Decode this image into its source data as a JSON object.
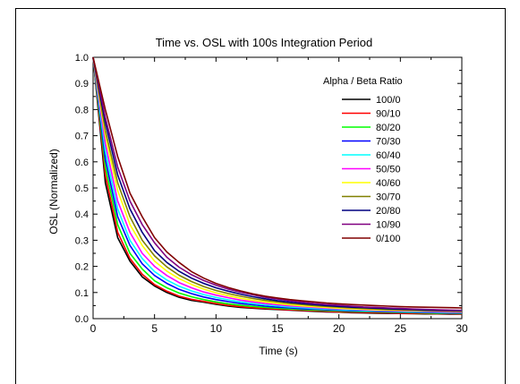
{
  "chart_data": {
    "type": "line",
    "title": "Time vs. OSL with 100s Integration Period",
    "xlabel": "Time (s)",
    "ylabel": "OSL (Normalized)",
    "xlim": [
      0,
      30
    ],
    "ylim": [
      0,
      1.0
    ],
    "xticks": [
      "0",
      "5",
      "10",
      "15",
      "20",
      "25",
      "30"
    ],
    "yticks": [
      "0.0",
      "0.1",
      "0.2",
      "0.3",
      "0.4",
      "0.5",
      "0.6",
      "0.7",
      "0.8",
      "0.9",
      "1.0"
    ],
    "grid": false,
    "legend_title": "Alpha / Beta Ratio",
    "legend_position": "top-right",
    "x": [
      0,
      1,
      2,
      3,
      4,
      5,
      6,
      7,
      8,
      9,
      10,
      11,
      12,
      13,
      14,
      15,
      16,
      17,
      18,
      19,
      20,
      21,
      22,
      23,
      24,
      25,
      26,
      27,
      28,
      29,
      30
    ],
    "series": [
      {
        "name": "100/0",
        "color": "#000000",
        "values": [
          1.0,
          0.52,
          0.31,
          0.22,
          0.16,
          0.125,
          0.1,
          0.082,
          0.07,
          0.063,
          0.055,
          0.048,
          0.043,
          0.04,
          0.037,
          0.035,
          0.033,
          0.03,
          0.028,
          0.026,
          0.025,
          0.023,
          0.022,
          0.021,
          0.02,
          0.02,
          0.019,
          0.018,
          0.018,
          0.017,
          0.017
        ]
      },
      {
        "name": "90/10",
        "color": "#ff0000",
        "values": [
          1.0,
          0.55,
          0.33,
          0.23,
          0.17,
          0.13,
          0.105,
          0.086,
          0.074,
          0.066,
          0.058,
          0.051,
          0.046,
          0.042,
          0.039,
          0.036,
          0.034,
          0.032,
          0.03,
          0.028,
          0.026,
          0.025,
          0.024,
          0.023,
          0.022,
          0.021,
          0.02,
          0.02,
          0.019,
          0.019,
          0.018
        ]
      },
      {
        "name": "80/20",
        "color": "#00ff00",
        "values": [
          1.0,
          0.58,
          0.36,
          0.25,
          0.19,
          0.145,
          0.118,
          0.098,
          0.084,
          0.073,
          0.064,
          0.057,
          0.051,
          0.047,
          0.043,
          0.04,
          0.037,
          0.035,
          0.033,
          0.031,
          0.029,
          0.028,
          0.027,
          0.026,
          0.025,
          0.024,
          0.023,
          0.022,
          0.021,
          0.021,
          0.02
        ]
      },
      {
        "name": "70/30",
        "color": "#0000ff",
        "values": [
          1.0,
          0.61,
          0.39,
          0.28,
          0.21,
          0.165,
          0.135,
          0.112,
          0.096,
          0.083,
          0.073,
          0.065,
          0.058,
          0.053,
          0.048,
          0.044,
          0.041,
          0.038,
          0.036,
          0.034,
          0.032,
          0.03,
          0.029,
          0.028,
          0.027,
          0.026,
          0.025,
          0.024,
          0.023,
          0.022,
          0.022
        ]
      },
      {
        "name": "60/40",
        "color": "#00ffff",
        "values": [
          1.0,
          0.64,
          0.42,
          0.3,
          0.23,
          0.18,
          0.148,
          0.124,
          0.106,
          0.092,
          0.081,
          0.072,
          0.064,
          0.058,
          0.053,
          0.049,
          0.045,
          0.042,
          0.039,
          0.037,
          0.035,
          0.033,
          0.031,
          0.03,
          0.029,
          0.028,
          0.027,
          0.026,
          0.025,
          0.024,
          0.024
        ]
      },
      {
        "name": "50/50",
        "color": "#ff00ff",
        "values": [
          1.0,
          0.67,
          0.45,
          0.33,
          0.25,
          0.2,
          0.165,
          0.138,
          0.118,
          0.102,
          0.09,
          0.08,
          0.071,
          0.064,
          0.058,
          0.053,
          0.049,
          0.046,
          0.043,
          0.04,
          0.038,
          0.036,
          0.034,
          0.032,
          0.031,
          0.03,
          0.029,
          0.028,
          0.027,
          0.026,
          0.025
        ]
      },
      {
        "name": "40/60",
        "color": "#ffff00",
        "values": [
          1.0,
          0.7,
          0.49,
          0.36,
          0.28,
          0.22,
          0.182,
          0.153,
          0.131,
          0.113,
          0.099,
          0.088,
          0.078,
          0.07,
          0.064,
          0.058,
          0.053,
          0.049,
          0.046,
          0.043,
          0.04,
          0.038,
          0.036,
          0.034,
          0.033,
          0.032,
          0.031,
          0.03,
          0.029,
          0.028,
          0.027
        ]
      },
      {
        "name": "30/70",
        "color": "#808000",
        "values": [
          1.0,
          0.72,
          0.52,
          0.39,
          0.3,
          0.24,
          0.198,
          0.166,
          0.142,
          0.123,
          0.108,
          0.096,
          0.086,
          0.077,
          0.07,
          0.064,
          0.058,
          0.054,
          0.05,
          0.047,
          0.044,
          0.041,
          0.039,
          0.037,
          0.035,
          0.034,
          0.033,
          0.031,
          0.03,
          0.029,
          0.028
        ]
      },
      {
        "name": "20/80",
        "color": "#000080",
        "values": [
          1.0,
          0.75,
          0.55,
          0.42,
          0.33,
          0.26,
          0.215,
          0.181,
          0.155,
          0.135,
          0.118,
          0.105,
          0.094,
          0.084,
          0.076,
          0.069,
          0.063,
          0.058,
          0.054,
          0.05,
          0.047,
          0.044,
          0.042,
          0.04,
          0.038,
          0.036,
          0.035,
          0.033,
          0.032,
          0.031,
          0.03
        ]
      },
      {
        "name": "10/90",
        "color": "#800080",
        "values": [
          1.0,
          0.77,
          0.58,
          0.45,
          0.36,
          0.29,
          0.235,
          0.197,
          0.168,
          0.146,
          0.128,
          0.113,
          0.101,
          0.091,
          0.082,
          0.075,
          0.069,
          0.063,
          0.058,
          0.054,
          0.051,
          0.048,
          0.045,
          0.043,
          0.041,
          0.039,
          0.037,
          0.036,
          0.034,
          0.033,
          0.032
        ]
      },
      {
        "name": "0/100",
        "color": "#800000",
        "values": [
          1.0,
          0.8,
          0.62,
          0.48,
          0.39,
          0.31,
          0.255,
          0.215,
          0.18,
          0.155,
          0.135,
          0.119,
          0.106,
          0.095,
          0.086,
          0.079,
          0.073,
          0.068,
          0.064,
          0.06,
          0.057,
          0.054,
          0.052,
          0.05,
          0.048,
          0.046,
          0.045,
          0.044,
          0.043,
          0.042,
          0.041
        ]
      }
    ]
  }
}
